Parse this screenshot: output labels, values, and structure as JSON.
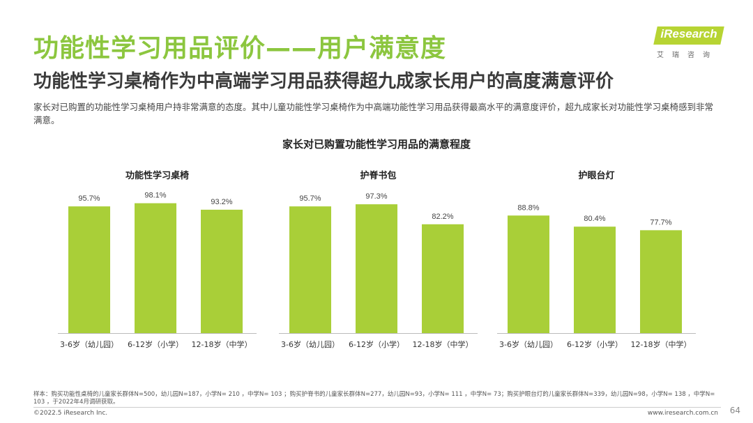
{
  "header": {
    "title": "功能性学习用品评价——用户满意度",
    "subtitle": "功能性学习桌椅作为中高端学习用品获得超九成家长用户的高度满意评价",
    "description": "家长对已购置的功能性学习桌椅用户持非常满意的态度。其中儿童功能性学习桌椅作为中高端功能性学习用品获得最高水平的满意度评价，超九成家长对功能性学习桌椅感到非常满意。"
  },
  "logo": {
    "text": "iResearch",
    "sub": "艾瑞咨询"
  },
  "colors": {
    "accent": "#8cc63f",
    "bar": "#a9cf38"
  },
  "chart_data": {
    "type": "bar",
    "title": "家长对已购置功能性学习用品的满意程度",
    "categories": [
      "3-6岁（幼儿园）",
      "6-12岁（小学）",
      "12-18岁（中学）"
    ],
    "unit": "%",
    "ylim": [
      0,
      100
    ],
    "grid": false,
    "panels": [
      {
        "name": "功能性学习桌椅",
        "values": [
          95.7,
          98.1,
          93.2
        ]
      },
      {
        "name": "护脊书包",
        "values": [
          95.7,
          97.3,
          82.2
        ]
      },
      {
        "name": "护眼台灯",
        "values": [
          88.8,
          80.4,
          77.7
        ]
      }
    ]
  },
  "footer": {
    "footnote": "样本：购买功能性桌椅的儿童家长群体N=500，幼儿园N=187，小学N= 210 ，中学N= 103 ；购买护脊书的儿童家长群体N=277，幼儿园N=93，小学N= 111 ，中学N= 73；购买护眼台灯的儿童家长群体N=339，幼儿园N=98，小学N= 138 ，中学N= 103 ，于2022年4月调研获取。",
    "copyright": "©2022.5 iResearch Inc.",
    "website": "www.iresearch.com.cn",
    "page": "64"
  }
}
